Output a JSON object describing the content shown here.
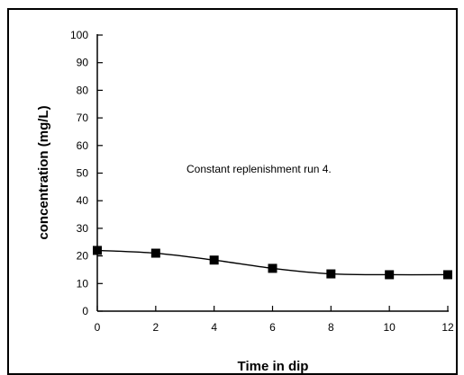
{
  "chart_data": {
    "type": "line",
    "title": "",
    "xlabel": "Time in dip",
    "ylabel": "concentration (mg/L)",
    "annotation": "Constant replenishment run 4.",
    "xlim": [
      0,
      12
    ],
    "ylim": [
      0,
      100
    ],
    "xticks": [
      0,
      2,
      4,
      6,
      8,
      10,
      12
    ],
    "yticks": [
      0,
      10,
      20,
      30,
      40,
      50,
      60,
      70,
      80,
      90,
      100
    ],
    "grid": false,
    "legend": "none",
    "series": [
      {
        "marker": "square",
        "points": [
          {
            "x": 0,
            "y": 22
          },
          {
            "x": 2,
            "y": 21
          },
          {
            "x": 4,
            "y": 18.5
          },
          {
            "x": 6,
            "y": 15.5
          },
          {
            "x": 8,
            "y": 13.5
          },
          {
            "x": 10,
            "y": 13.2
          },
          {
            "x": 12,
            "y": 13.2
          }
        ]
      }
    ],
    "colors": {
      "line": "#000000",
      "marker": "#000000"
    }
  }
}
